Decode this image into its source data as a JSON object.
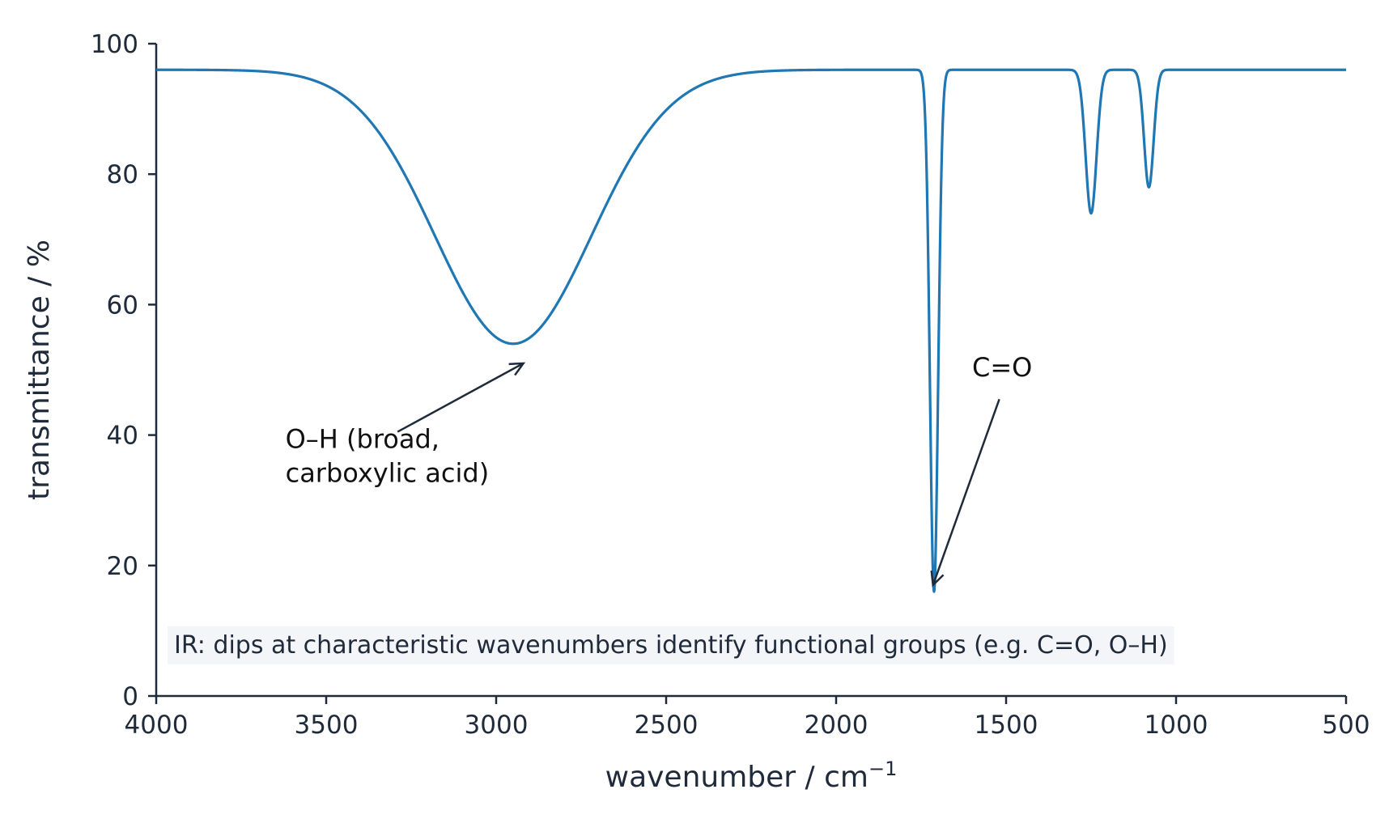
{
  "chart_data": {
    "type": "line",
    "title": "",
    "xlabel": "wavenumber / cm",
    "xlabel_sup": "−1",
    "ylabel": "transmittance / %",
    "xlim": [
      4000,
      500
    ],
    "ylim": [
      0,
      100
    ],
    "x_reversed": true,
    "grid": false,
    "xticks": [
      4000,
      3500,
      3000,
      2500,
      2000,
      1500,
      1000,
      500
    ],
    "yticks": [
      0,
      20,
      40,
      60,
      80,
      100
    ],
    "line_color": "#1f77b4",
    "baseline": 96,
    "peaks": [
      {
        "center": 2950,
        "min_transmittance": 54,
        "width": 230
      },
      {
        "center": 1712,
        "min_transmittance": 16,
        "width": 12
      },
      {
        "center": 1250,
        "min_transmittance": 74,
        "width": 16
      },
      {
        "center": 1080,
        "min_transmittance": 78,
        "width": 14
      }
    ],
    "annotations": [
      {
        "lines": [
          "O–H (broad,",
          "carboxylic acid)"
        ],
        "arrow_to": {
          "x": 2920,
          "y": 51
        },
        "text_at": {
          "x": 3620,
          "y": 38
        }
      },
      {
        "lines": [
          "C=O"
        ],
        "arrow_to": {
          "x": 1715,
          "y": 17
        },
        "text_at": {
          "x": 1600,
          "y": 49
        }
      }
    ],
    "note": "IR: dips at characteristic wavenumbers identify functional groups (e.g. C=O, O–H)"
  }
}
